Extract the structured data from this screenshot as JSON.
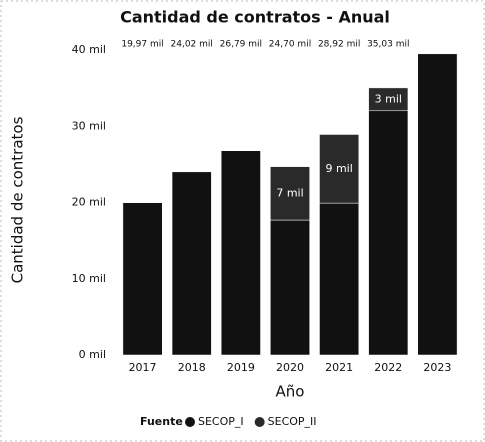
{
  "chart_data": {
    "type": "stacked_bar",
    "title": "Cantidad de contratos - Anual",
    "ylabel": "Cantidad de contratos",
    "xlabel": "Año",
    "legend_title": "Fuente",
    "categories": [
      "2017",
      "2018",
      "2019",
      "2020",
      "2021",
      "2022",
      "2023"
    ],
    "series": [
      {
        "name": "SECOP_I",
        "color": "#111111",
        "values": [
          19970,
          24020,
          26790,
          17700,
          19920,
          32030,
          39500
        ]
      },
      {
        "name": "SECOP_II",
        "color": "#2a2a2a",
        "values": [
          null,
          null,
          null,
          7000,
          9000,
          3000,
          null
        ],
        "value_labels": [
          null,
          null,
          null,
          "7 mil",
          "9 mil",
          "3 mil",
          null
        ]
      }
    ],
    "totals": [
      19970,
      24020,
      26790,
      24700,
      28920,
      35030,
      39500
    ],
    "total_labels": [
      "19,97 mil",
      "24,02 mil",
      "26,79 mil",
      "24,70 mil",
      "28,92 mil",
      "35,03 mil",
      null
    ],
    "ylim": [
      0,
      40000
    ],
    "yticks": [
      {
        "value": 0,
        "label": "0 mil"
      },
      {
        "value": 10000,
        "label": "10 mil"
      },
      {
        "value": 20000,
        "label": "20 mil"
      },
      {
        "value": 30000,
        "label": "30 mil"
      },
      {
        "value": 40000,
        "label": "40 mil"
      }
    ],
    "grid": false
  }
}
